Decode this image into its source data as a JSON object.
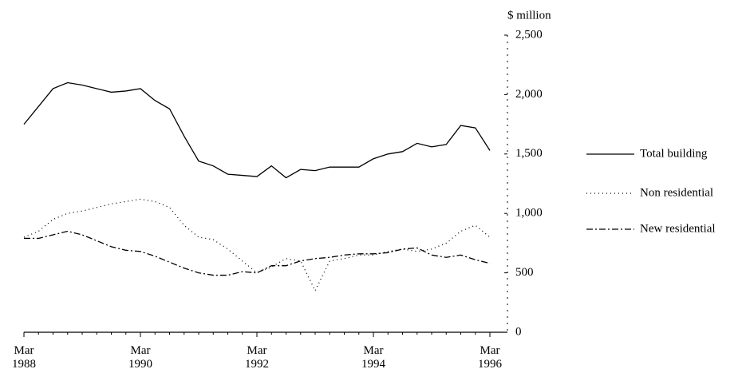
{
  "chart_data": {
    "type": "line",
    "y_axis_label": "$ million",
    "categories": [
      "Mar 1988",
      null,
      null,
      null,
      null,
      null,
      null,
      null,
      "Mar 1990",
      null,
      null,
      null,
      null,
      null,
      null,
      null,
      "Mar 1992",
      null,
      null,
      null,
      null,
      null,
      null,
      null,
      "Mar 1994",
      null,
      null,
      null,
      null,
      null,
      null,
      null,
      "Mar 1996"
    ],
    "series": [
      {
        "name": "Total building",
        "color": "#000000",
        "dash": "none",
        "values": [
          1750,
          1900,
          2050,
          2100,
          2080,
          2050,
          2020,
          2030,
          2050,
          1950,
          1880,
          1650,
          1440,
          1400,
          1330,
          1320,
          1310,
          1400,
          1300,
          1370,
          1360,
          1390,
          1390,
          1390,
          1460,
          1500,
          1520,
          1590,
          1560,
          1580,
          1740,
          1720,
          1530
        ]
      },
      {
        "name": "Non residential",
        "color": "#000000",
        "dash": "1 4",
        "values": [
          800,
          850,
          950,
          1000,
          1020,
          1050,
          1080,
          1100,
          1120,
          1100,
          1050,
          900,
          800,
          780,
          700,
          600,
          500,
          550,
          620,
          600,
          350,
          600,
          620,
          650,
          650,
          680,
          700,
          680,
          700,
          750,
          850,
          900,
          800
        ]
      },
      {
        "name": "New residential",
        "color": "#000000",
        "dash": "8 3 2 3",
        "values": [
          790,
          790,
          820,
          850,
          820,
          770,
          720,
          690,
          680,
          640,
          590,
          540,
          500,
          480,
          480,
          510,
          500,
          560,
          560,
          600,
          620,
          630,
          650,
          660,
          660,
          670,
          700,
          710,
          650,
          630,
          650,
          610,
          580
        ]
      }
    ],
    "ylim": [
      0,
      2500
    ],
    "yticks": [
      0,
      500,
      {
        "value": 1000,
        "label": "1,000"
      },
      {
        "value": 1500,
        "label": "1,500"
      },
      {
        "value": 2000,
        "label": "2,000"
      },
      {
        "value": 2500,
        "label": "2,500"
      }
    ],
    "y_axis_side": "right",
    "grid": false
  }
}
